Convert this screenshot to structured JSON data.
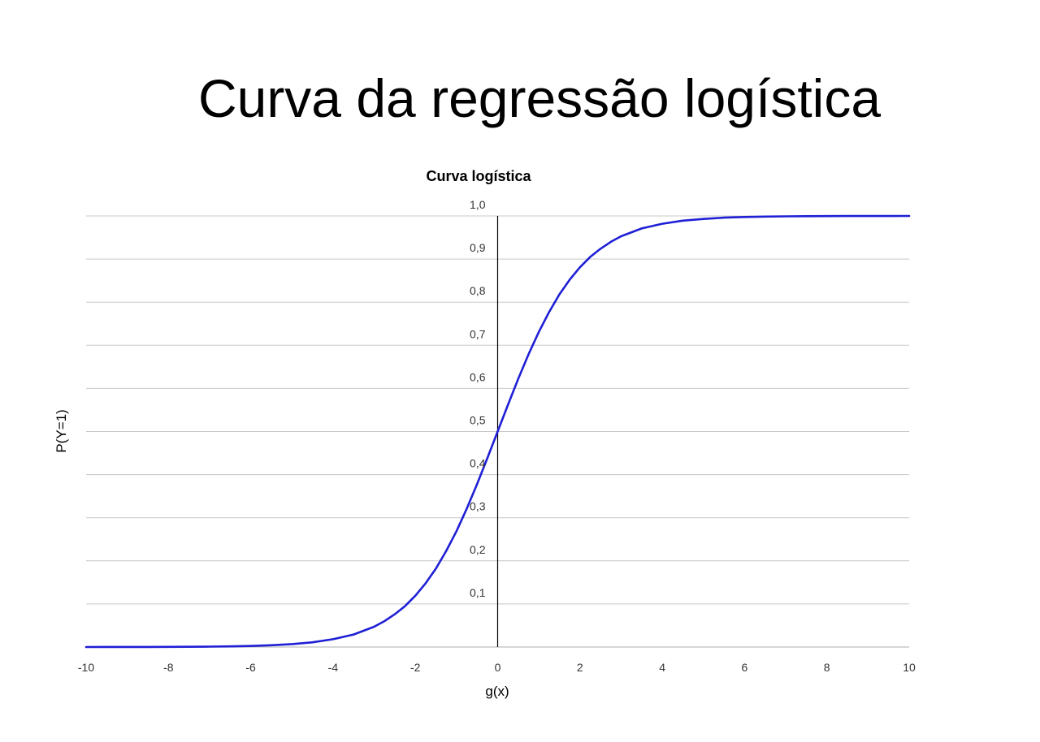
{
  "slide": {
    "title": "Curva da regressão logística"
  },
  "chart_data": {
    "type": "line",
    "title": "Curva logística",
    "xlabel": "g(x)",
    "ylabel": "P(Y=1)",
    "xlim": [
      -10,
      10
    ],
    "ylim": [
      0,
      1
    ],
    "x_ticks": [
      "-10",
      "-8",
      "-6",
      "-4",
      "-2",
      "0",
      "2",
      "4",
      "6",
      "8",
      "10"
    ],
    "y_ticks": [
      "0,1",
      "0,2",
      "0,3",
      "0,4",
      "0,5",
      "0,6",
      "0,7",
      "0,8",
      "0,9",
      "1,0"
    ],
    "grid": true,
    "line_color": "#1f1fd6",
    "series": [
      {
        "x": [
          -10,
          -9.5,
          -9,
          -8.5,
          -8,
          -7.5,
          -7,
          -6.5,
          -6,
          -5.5,
          -5,
          -4.5,
          -4,
          -3.5,
          -3,
          -2.75,
          -2.5,
          -2.25,
          -2,
          -1.75,
          -1.5,
          -1.25,
          -1,
          -0.75,
          -0.5,
          -0.25,
          0,
          0.25,
          0.5,
          0.75,
          1,
          1.25,
          1.5,
          1.75,
          2,
          2.25,
          2.5,
          2.75,
          3,
          3.5,
          4,
          4.5,
          5,
          5.5,
          6,
          6.5,
          7,
          7.5,
          8,
          8.5,
          9,
          9.5,
          10
        ],
        "y": [
          0.0,
          0.0001,
          0.0001,
          0.0002,
          0.0003,
          0.0006,
          0.0009,
          0.0015,
          0.0025,
          0.0041,
          0.0067,
          0.011,
          0.018,
          0.029,
          0.047,
          0.06,
          0.076,
          0.095,
          0.119,
          0.148,
          0.182,
          0.223,
          0.269,
          0.321,
          0.378,
          0.438,
          0.5,
          0.562,
          0.622,
          0.679,
          0.731,
          0.777,
          0.818,
          0.852,
          0.881,
          0.905,
          0.924,
          0.94,
          0.953,
          0.971,
          0.982,
          0.989,
          0.993,
          0.996,
          0.9975,
          0.9985,
          0.9991,
          0.9994,
          0.9997,
          0.9998,
          0.9999,
          0.9999,
          1.0
        ]
      }
    ]
  }
}
